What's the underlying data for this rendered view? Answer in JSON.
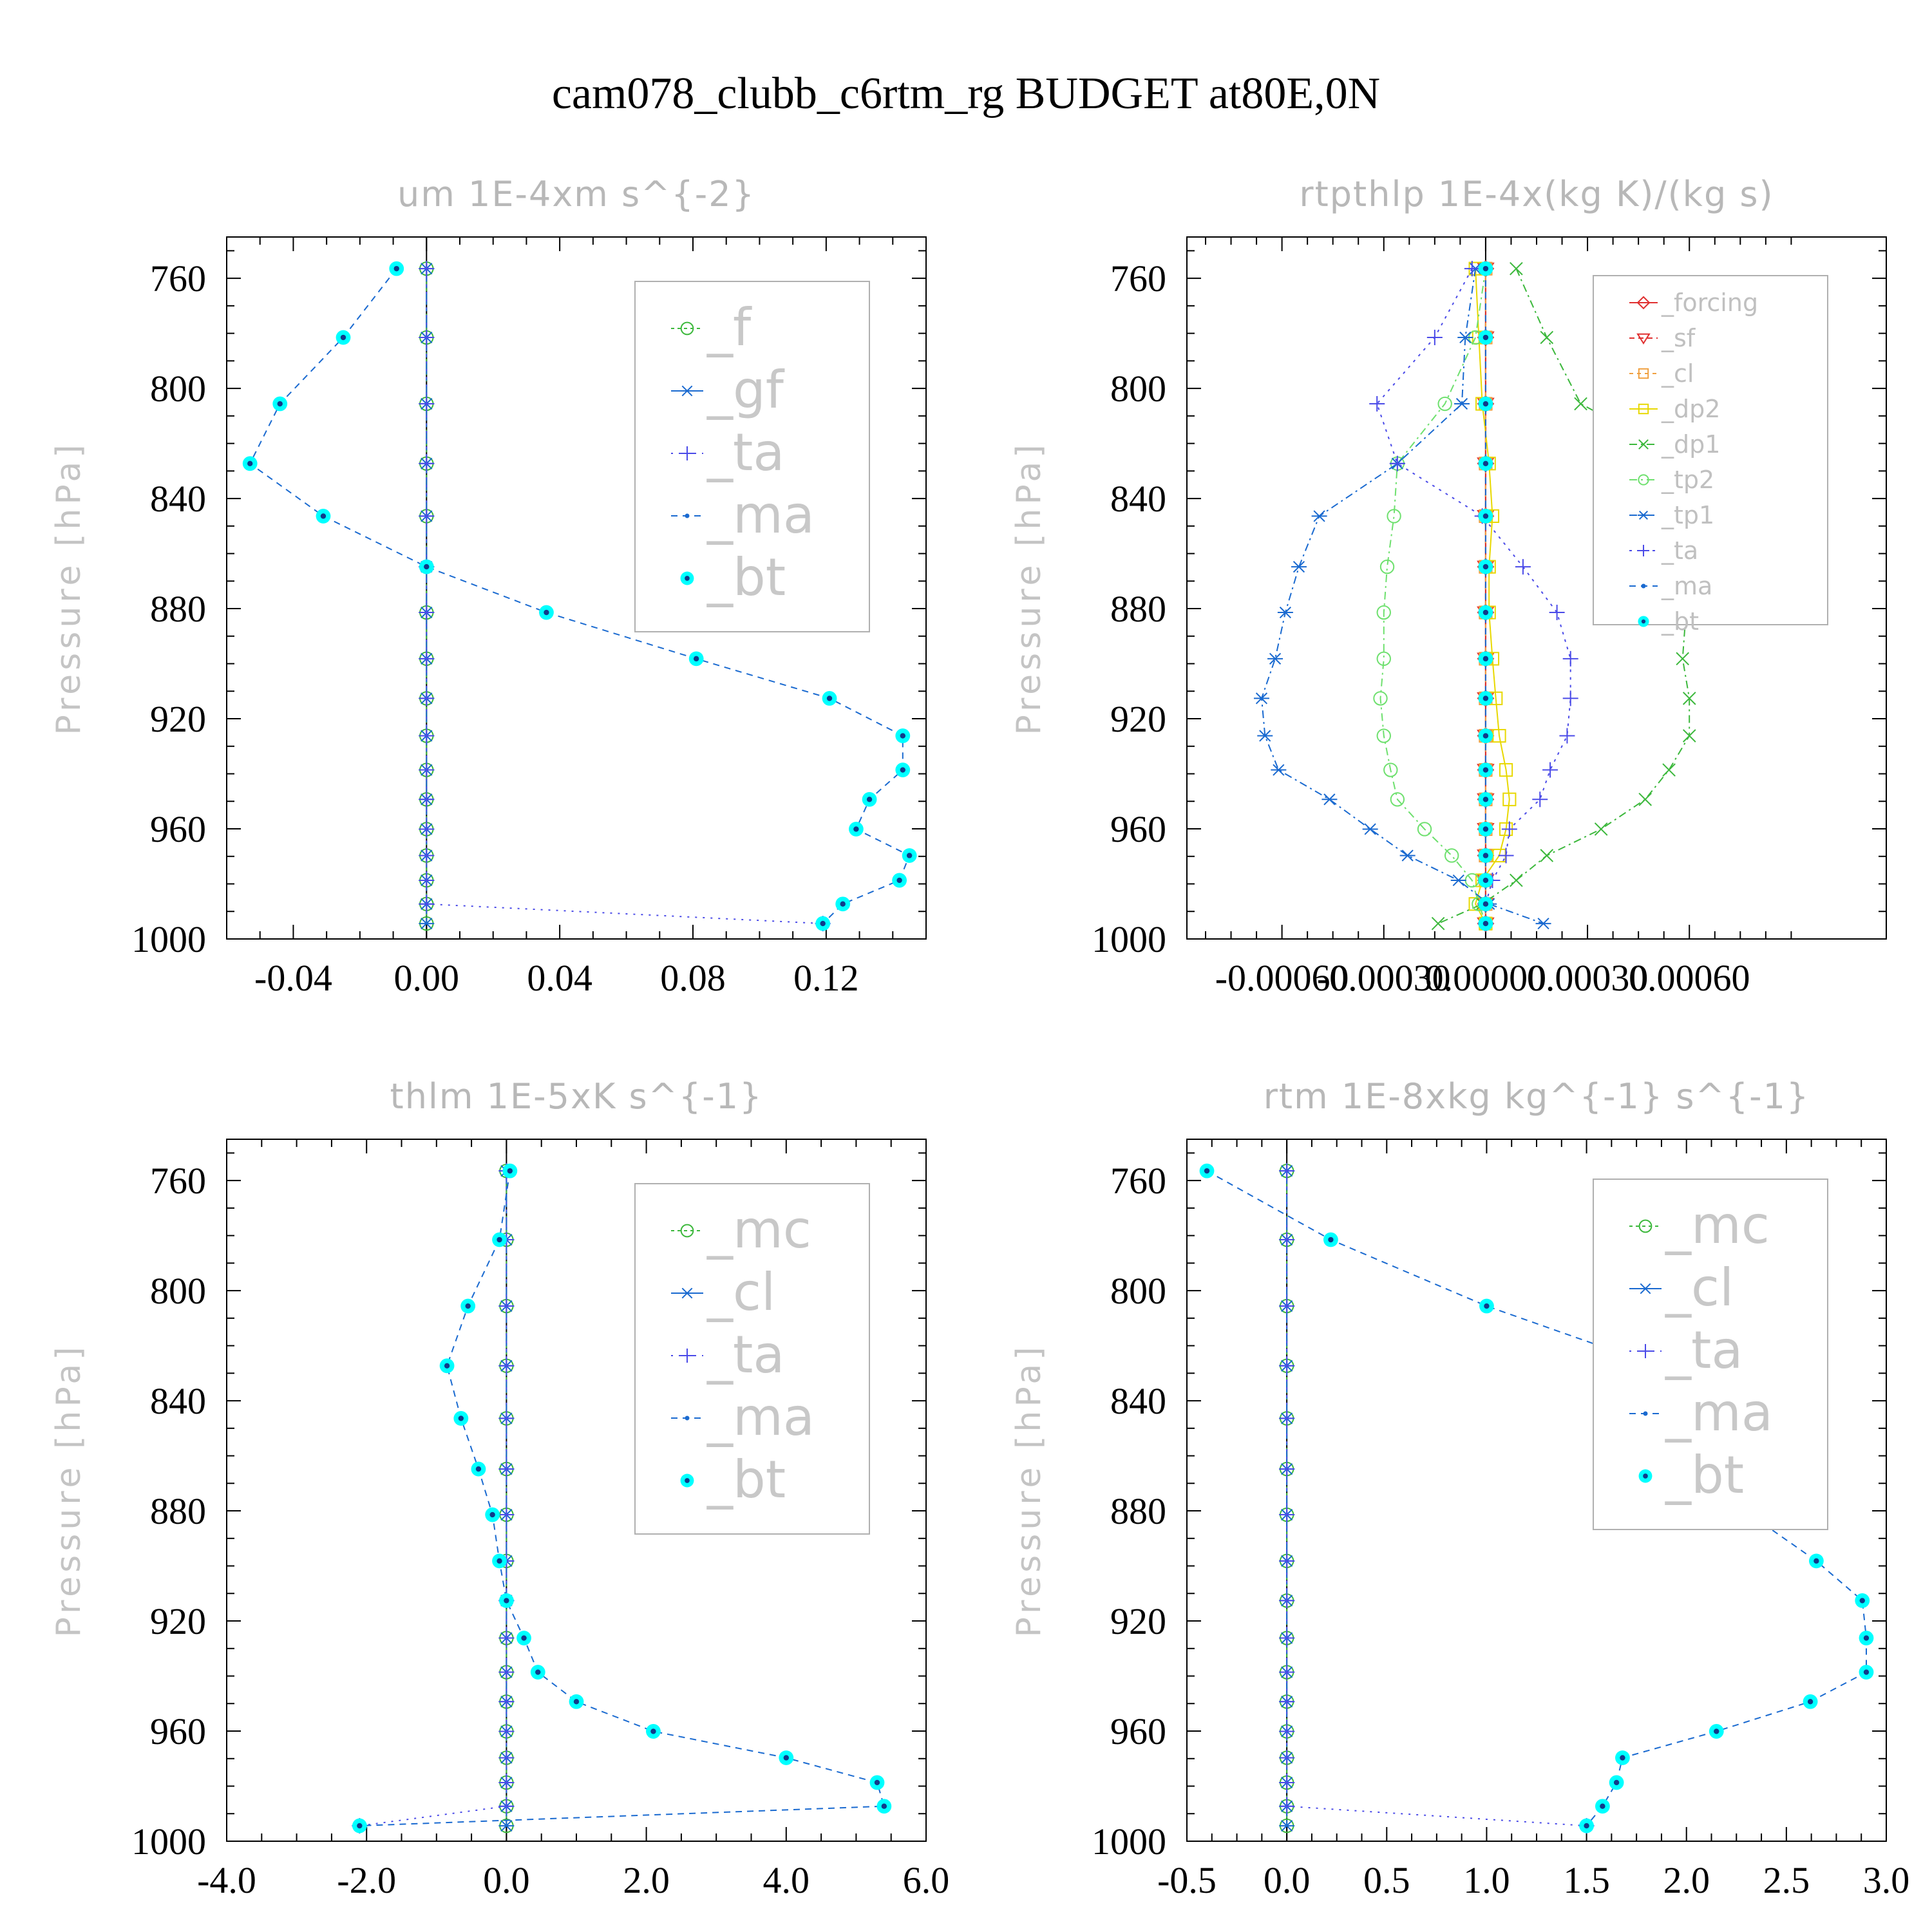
{
  "title": "cam078_clubb_c6rtm_rg  BUDGET at80E,0N",
  "colors": {
    "green": "#3cb83c",
    "blue": "#1a6ad0",
    "purple": "#4a4ae8",
    "cyan": "#00ffff",
    "red": "#e03030",
    "orange": "#f0a040",
    "yellow": "#e8d800",
    "lightgreen": "#6ee06e"
  },
  "chart_data": [
    {
      "type": "line",
      "title": "um   1E-4xm s^{-2}",
      "ylabel": "Pressure [hPa]",
      "xlim": [
        -0.06,
        0.15
      ],
      "xticks": [
        -0.04,
        0.0,
        0.04,
        0.08,
        0.12
      ],
      "xtick_labels": [
        "-0.04",
        "0.00",
        "0.04",
        "0.08",
        "0.12"
      ],
      "ylim": [
        745,
        1000
      ],
      "yticks": [
        760,
        800,
        840,
        880,
        920,
        960,
        1000
      ],
      "legend_position": "upper-right",
      "legend_size": "large",
      "pressure_levels": [
        756.5,
        781.5,
        805.6,
        827.3,
        846.4,
        864.8,
        881.4,
        898.2,
        912.6,
        926.2,
        938.6,
        949.3,
        960.1,
        969.7,
        978.7,
        987.3,
        994.4,
        1000.5
      ],
      "series": [
        {
          "name": "_f",
          "color": "green",
          "marker": "circle-open",
          "dash": "5,5",
          "x": [
            0,
            0,
            0,
            0,
            0,
            0,
            0,
            0,
            0,
            0,
            0,
            0,
            0,
            0,
            0,
            0,
            0,
            0
          ]
        },
        {
          "name": "_gf",
          "color": "blue",
          "marker": "asterisk",
          "dash": "20,6,4,6",
          "x": [
            0,
            0,
            0,
            0,
            0,
            0,
            0,
            0,
            0,
            0,
            0,
            0,
            0,
            0,
            0,
            0,
            0,
            0
          ]
        },
        {
          "name": "_ta",
          "color": "purple",
          "marker": "plus",
          "dash": "3,9",
          "x": [
            0,
            0,
            0,
            0,
            0,
            0,
            0,
            0,
            0,
            0,
            0,
            0,
            0,
            0,
            0,
            0,
            0.119,
            0
          ]
        },
        {
          "name": "_ma",
          "color": "blue",
          "marker": "dot",
          "dash": "10,8",
          "x": [
            -0.009,
            -0.025,
            -0.044,
            -0.053,
            -0.031,
            0.0,
            0.036,
            0.081,
            0.121,
            0.143,
            0.143,
            0.133,
            0.129,
            0.145,
            0.142,
            0.125,
            0.119,
            0.119
          ]
        },
        {
          "name": "_bt",
          "color": "cyan",
          "marker": "filled-circle",
          "dash": "",
          "x": [
            -0.009,
            -0.025,
            -0.044,
            -0.053,
            -0.031,
            0.0,
            0.036,
            0.081,
            0.121,
            0.143,
            0.143,
            0.133,
            0.129,
            0.145,
            0.142,
            0.125,
            0.119,
            0.119
          ]
        }
      ]
    },
    {
      "type": "line",
      "title": "rtpthlp   1E-4x(kg K)/(kg s)",
      "ylabel": "Pressure [hPa]",
      "xlim": [
        -0.00088,
        0.00118
      ],
      "xticks": [
        -0.0006,
        -0.0003,
        0.0,
        0.0003,
        0.0006
      ],
      "xtick_labels": [
        "-0.00060",
        "-0.00030",
        "0.00000",
        "0.00030",
        "0.00060"
      ],
      "ylim": [
        745,
        1000
      ],
      "yticks": [
        760,
        800,
        840,
        880,
        920,
        960,
        1000
      ],
      "legend_position": "upper-right",
      "legend_size": "small",
      "pressure_levels": [
        756.5,
        781.5,
        805.6,
        827.3,
        846.4,
        864.8,
        881.4,
        898.2,
        912.6,
        926.2,
        938.6,
        949.3,
        960.1,
        969.7,
        978.7,
        987.3,
        994.4,
        1000.5
      ],
      "series": [
        {
          "name": "_forcing",
          "color": "red",
          "marker": "diamond-open",
          "dash": "",
          "x": [
            0,
            0,
            0,
            0,
            0,
            0,
            0,
            0,
            0,
            0,
            0,
            0,
            0,
            0,
            0,
            0,
            0,
            0
          ]
        },
        {
          "name": "_sf",
          "color": "red",
          "marker": "triangle-open",
          "dash": "8,6",
          "x": [
            0,
            0,
            0,
            0,
            0,
            0,
            0,
            0,
            0,
            0,
            0,
            0,
            0,
            0,
            0,
            0,
            0,
            0
          ]
        },
        {
          "name": "_cl",
          "color": "orange",
          "marker": "square-open",
          "dash": "6,6",
          "x": [
            0,
            0,
            0,
            0,
            0,
            0,
            0,
            0,
            0,
            0,
            0,
            0,
            0,
            0,
            0,
            0,
            0,
            0
          ]
        },
        {
          "name": "_dp2",
          "color": "yellow",
          "marker": "square-open",
          "dash": "",
          "x": [
            -3e-05,
            -2e-05,
            -1e-05,
            1e-05,
            2e-05,
            1e-05,
            1e-05,
            2e-05,
            3e-05,
            4e-05,
            6e-05,
            7e-05,
            6e-05,
            4e-05,
            -1e-05,
            -3e-05,
            0.0,
            0.0
          ]
        },
        {
          "name": "_dp1",
          "color": "green",
          "marker": "cross",
          "dash": "12,6,3,6",
          "x": [
            9e-05,
            0.00018,
            0.00028,
            0.00061,
            0.00068,
            0.00064,
            0.00059,
            0.00058,
            0.0006,
            0.0006,
            0.00054,
            0.00047,
            0.00034,
            0.00018,
            9e-05,
            -1e-05,
            -0.00014,
            -1e-05
          ]
        },
        {
          "name": "_tp2",
          "color": "lightgreen",
          "marker": "circle-open",
          "dash": "12,6,3,6",
          "x": [
            0.0,
            -3e-05,
            -0.00012,
            -0.00026,
            -0.00027,
            -0.00029,
            -0.0003,
            -0.0003,
            -0.00031,
            -0.0003,
            -0.00028,
            -0.00026,
            -0.00018,
            -0.0001,
            -4e-05,
            -2e-05,
            0.0,
            0.0
          ]
        },
        {
          "name": "_tp1",
          "color": "blue",
          "marker": "asterisk",
          "dash": "12,6,3,6",
          "x": [
            -3e-05,
            -6e-05,
            -7e-05,
            -0.00026,
            -0.00049,
            -0.00055,
            -0.00059,
            -0.00062,
            -0.00066,
            -0.00065,
            -0.00061,
            -0.00046,
            -0.00034,
            -0.00023,
            -8e-05,
            1e-05,
            0.00017,
            0.0
          ]
        },
        {
          "name": "_ta",
          "color": "purple",
          "marker": "plus",
          "dash": "4,8",
          "x": [
            -4e-05,
            -0.00015,
            -0.00032,
            -0.00026,
            -1e-05,
            0.00011,
            0.00021,
            0.00025,
            0.00025,
            0.00024,
            0.00019,
            0.00016,
            7e-05,
            6e-05,
            2e-05,
            0.0,
            0.0,
            0.0
          ]
        },
        {
          "name": "_ma",
          "color": "blue",
          "marker": "dot",
          "dash": "10,8",
          "x": [
            0,
            0,
            0,
            0,
            0,
            0,
            0,
            0,
            0,
            0,
            0,
            0,
            0,
            0,
            0,
            0,
            0,
            0
          ]
        },
        {
          "name": "_bt",
          "color": "cyan",
          "marker": "filled-circle",
          "dash": "",
          "x": [
            0,
            0,
            0,
            0,
            0,
            0,
            0,
            0,
            0,
            0,
            0,
            0,
            0,
            0,
            0,
            0,
            0,
            0
          ]
        }
      ]
    },
    {
      "type": "line",
      "title": "thlm   1E-5xK s^{-1}",
      "ylabel": "Pressure [hPa]",
      "xlim": [
        -4.0,
        6.0
      ],
      "xticks": [
        -4.0,
        -2.0,
        0.0,
        2.0,
        4.0,
        6.0
      ],
      "xtick_labels": [
        "-4.0",
        "-2.0",
        "0.0",
        "2.0",
        "4.0",
        "6.0"
      ],
      "ylim": [
        745,
        1000
      ],
      "yticks": [
        760,
        800,
        840,
        880,
        920,
        960,
        1000
      ],
      "legend_position": "upper-right",
      "legend_size": "large",
      "pressure_levels": [
        756.5,
        781.5,
        805.6,
        827.3,
        846.4,
        864.8,
        881.4,
        898.2,
        912.6,
        926.2,
        938.6,
        949.3,
        960.1,
        969.7,
        978.7,
        987.3,
        994.4,
        1000.5
      ],
      "series": [
        {
          "name": "_mc",
          "color": "green",
          "marker": "circle-open",
          "dash": "5,5",
          "x": [
            0,
            0,
            0,
            0,
            0,
            0,
            0,
            0,
            0,
            0,
            0,
            0,
            0,
            0,
            0,
            0,
            0,
            0
          ]
        },
        {
          "name": "_cl",
          "color": "blue",
          "marker": "asterisk",
          "dash": "20,6,4,6",
          "x": [
            0,
            0,
            0,
            0,
            0,
            0,
            0,
            0,
            0,
            0,
            0,
            0,
            0,
            0,
            0,
            0,
            0,
            0
          ]
        },
        {
          "name": "_ta",
          "color": "purple",
          "marker": "plus",
          "dash": "3,9",
          "x": [
            0,
            0,
            0,
            0,
            0,
            0,
            0,
            0,
            0,
            0,
            0,
            0,
            0,
            0,
            0,
            0,
            -2.1,
            0
          ]
        },
        {
          "name": "_ma",
          "color": "blue",
          "marker": "dot",
          "dash": "10,8",
          "x": [
            0.05,
            -0.1,
            -0.55,
            -0.85,
            -0.65,
            -0.4,
            -0.2,
            -0.1,
            0.0,
            0.25,
            0.45,
            1.0,
            2.1,
            4.0,
            5.3,
            5.4,
            -2.1,
            -2.1
          ]
        },
        {
          "name": "_bt",
          "color": "cyan",
          "marker": "filled-circle",
          "dash": "",
          "x": [
            0.05,
            -0.1,
            -0.55,
            -0.85,
            -0.65,
            -0.4,
            -0.2,
            -0.1,
            0.0,
            0.25,
            0.45,
            1.0,
            2.1,
            4.0,
            5.3,
            5.4,
            -2.1,
            -2.1
          ]
        }
      ]
    },
    {
      "type": "line",
      "title": "rtm   1E-8xkg kg^{-1} s^{-1}",
      "ylabel": "Pressure [hPa]",
      "xlim": [
        -0.5,
        3.0
      ],
      "xticks": [
        -0.5,
        0.0,
        0.5,
        1.0,
        1.5,
        2.0,
        2.5,
        3.0
      ],
      "xtick_labels": [
        "-0.5",
        "0.0",
        "0.5",
        "1.0",
        "1.5",
        "2.0",
        "2.5",
        "3.0"
      ],
      "ylim": [
        745,
        1000
      ],
      "yticks": [
        760,
        800,
        840,
        880,
        920,
        960,
        1000
      ],
      "legend_position": "upper-right",
      "legend_size": "large",
      "pressure_levels": [
        756.5,
        781.5,
        805.6,
        827.3,
        846.4,
        864.8,
        881.4,
        898.2,
        912.6,
        926.2,
        938.6,
        949.3,
        960.1,
        969.7,
        978.7,
        987.3,
        994.4,
        1000.5
      ],
      "series": [
        {
          "name": "_mc",
          "color": "green",
          "marker": "circle-open",
          "dash": "5,5",
          "x": [
            0,
            0,
            0,
            0,
            0,
            0,
            0,
            0,
            0,
            0,
            0,
            0,
            0,
            0,
            0,
            0,
            0,
            0
          ]
        },
        {
          "name": "_cl",
          "color": "blue",
          "marker": "asterisk",
          "dash": "20,6,4,6",
          "x": [
            0,
            0,
            0,
            0,
            0,
            0,
            0,
            0,
            0,
            0,
            0,
            0,
            0,
            0,
            0,
            0,
            0,
            0
          ]
        },
        {
          "name": "_ta",
          "color": "purple",
          "marker": "plus",
          "dash": "3,9",
          "x": [
            0,
            0,
            0,
            0,
            0,
            0,
            0,
            0,
            0,
            0,
            0,
            0,
            0,
            0,
            0,
            0,
            1.5,
            0
          ]
        },
        {
          "name": "_ma",
          "color": "blue",
          "marker": "dot",
          "dash": "10,8",
          "x": [
            -0.4,
            0.22,
            1.0,
            1.85,
            2.05,
            2.15,
            2.32,
            2.65,
            2.88,
            2.9,
            2.9,
            2.62,
            2.15,
            1.68,
            1.65,
            1.58,
            1.5,
            1.5
          ]
        },
        {
          "name": "_bt",
          "color": "cyan",
          "marker": "filled-circle",
          "dash": "",
          "x": [
            -0.4,
            0.22,
            1.0,
            1.85,
            2.05,
            2.15,
            2.32,
            2.65,
            2.88,
            2.9,
            2.9,
            2.62,
            2.15,
            1.68,
            1.65,
            1.58,
            1.5,
            1.5
          ]
        }
      ]
    }
  ]
}
